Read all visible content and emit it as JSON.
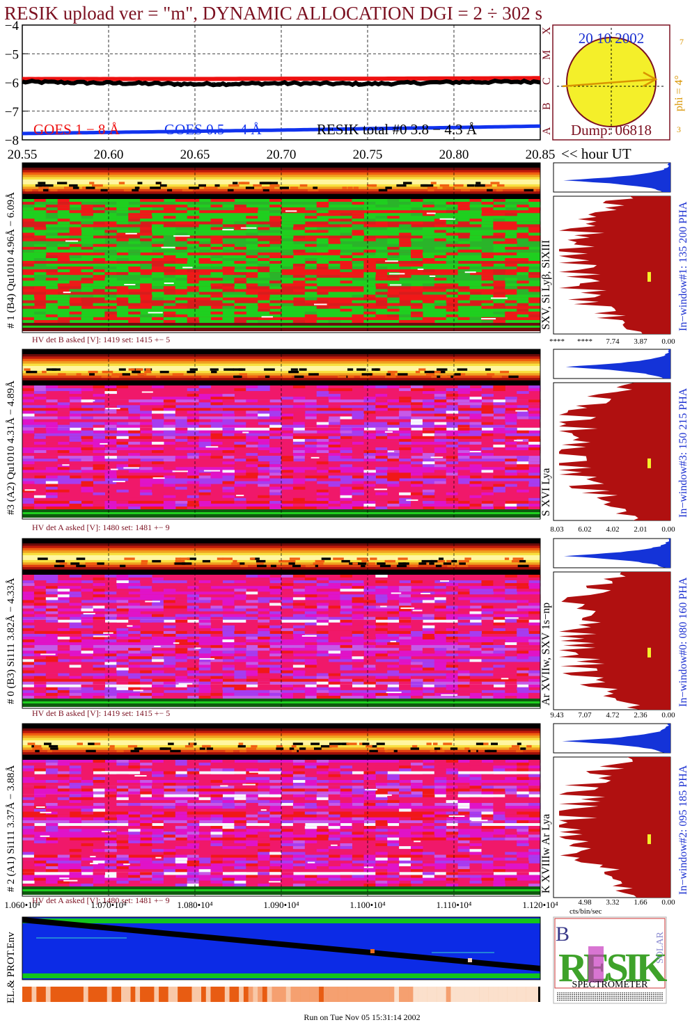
{
  "header": {
    "title": "RESIK upload ver = \"m\", DYNAMIC ALLOCATION  DGI =   2 ÷ 302 s",
    "footer": "Run on Tue Nov 05 15:31:14 2002"
  },
  "goes_panel": {
    "y_ticks": [
      "−4",
      "−5",
      "−6",
      "−7",
      "−8"
    ],
    "x_ticks": [
      "20.55",
      "20.60",
      "20.65",
      "20.70",
      "20.75",
      "20.80",
      "20.85"
    ],
    "x_unit": "<< hour UT",
    "legend": [
      {
        "label": "GOES 1 − 8 Å",
        "color": "#ee1111"
      },
      {
        "label": "GOES 0.5 − 4 Å",
        "color": "#1133ee"
      },
      {
        "label": "RESIK total #0  3.8 − 4.3 Å",
        "color": "#000000"
      }
    ]
  },
  "sun_panel": {
    "date": "20 10 2002",
    "dump": "Dump: 06818",
    "phi": "phi =  4°",
    "class_letters": [
      "X",
      "M",
      "C",
      "B",
      "A"
    ],
    "side_ticks": [
      "7",
      "3"
    ]
  },
  "detectors": [
    {
      "label": "# 1 (B4) Qu1010 4.96Å − 6.09Å",
      "lines": "SXV, Si Lyβ, SiXIII",
      "window": "In−window#1:  135 200 PHA",
      "hv": "HV det B asked [V]:  1419 set:  1415  +−   5",
      "pha_ticks": [
        "****",
        "****",
        "7.74",
        "3.87",
        "0.00"
      ],
      "scheme": "green"
    },
    {
      "label": "#3 (A2) Qu1010  4.31Å − 4.89Å",
      "lines": "S XVI Lya",
      "window": "In−window#3:  150 215 PHA",
      "hv": "HV det A asked [V]:  1480 set:  1481  +−   9",
      "pha_ticks": [
        "8.03",
        "6.02",
        "4.02",
        "2.01",
        "0.00"
      ],
      "scheme": "purple"
    },
    {
      "label": "# 0 (B3) Si111  3.82Å − 4.33Å",
      "lines": "Ar XVIIw,  SXV 1s−np",
      "window": "In−window#0:  080 160 PHA",
      "hv": "HV det B asked [V]:  1419 set:  1415  +−   5",
      "pha_ticks": [
        "9.43",
        "7.07",
        "4.72",
        "2.36",
        "0.00"
      ],
      "scheme": "purple"
    },
    {
      "label": "# 2 (A1) Si111  3.37Å − 3.88Å",
      "lines": "K XVIIIw  Ar Lya",
      "window": "In−window#2:  095 185 PHA",
      "hv": "HV det A asked [V]:  1480 set:  1481  +−   9",
      "pha_ticks": [
        "4.98",
        "3.32",
        "1.66",
        "0.00"
      ],
      "scheme": "purple"
    }
  ],
  "bottom_axis": {
    "ticks": [
      "1.060•10⁴",
      "1.070•10⁴",
      "1.080•10⁴",
      "1.090•10⁴",
      "1.100•10⁴",
      "1.110•10⁴",
      "1.120•10⁴"
    ],
    "unit": "cts/bin/sec"
  },
  "env_panel": {
    "label": "EL.& PROT.Env"
  },
  "logo": {
    "big": "RESIK",
    "top_left": "B",
    "solar": "SOLAR",
    "bottom": "SPECTROMETER"
  },
  "chart_data": {
    "type": "line",
    "title": "RESIK upload ver = \"m\", DYNAMIC ALLOCATION  DGI =   2 ÷ 302 s",
    "xlabel": "<< hour UT",
    "ylabel": "",
    "xlim": [
      20.55,
      20.85
    ],
    "ylim": [
      -8,
      -4
    ],
    "grid": true,
    "series": [
      {
        "name": "GOES 1 − 8 Å",
        "x": [
          20.55,
          20.6,
          20.65,
          20.7,
          20.75,
          20.8,
          20.85
        ],
        "values": [
          -5.88,
          -5.88,
          -5.88,
          -5.87,
          -5.87,
          -5.86,
          -5.85
        ]
      },
      {
        "name": "GOES 0.5 − 4 Å",
        "x": [
          20.55,
          20.6,
          20.65,
          20.7,
          20.75,
          20.8,
          20.85
        ],
        "values": [
          -7.78,
          -7.74,
          -7.7,
          -7.66,
          -7.61,
          -7.57,
          -7.52
        ]
      },
      {
        "name": "RESIK total #0  3.8 − 4.3 Å",
        "x": [
          20.55,
          20.6,
          20.65,
          20.7,
          20.75,
          20.8,
          20.85
        ],
        "values": [
          -5.98,
          -6.02,
          -6.06,
          -6.03,
          -6.05,
          -5.99,
          -5.97
        ]
      }
    ]
  }
}
